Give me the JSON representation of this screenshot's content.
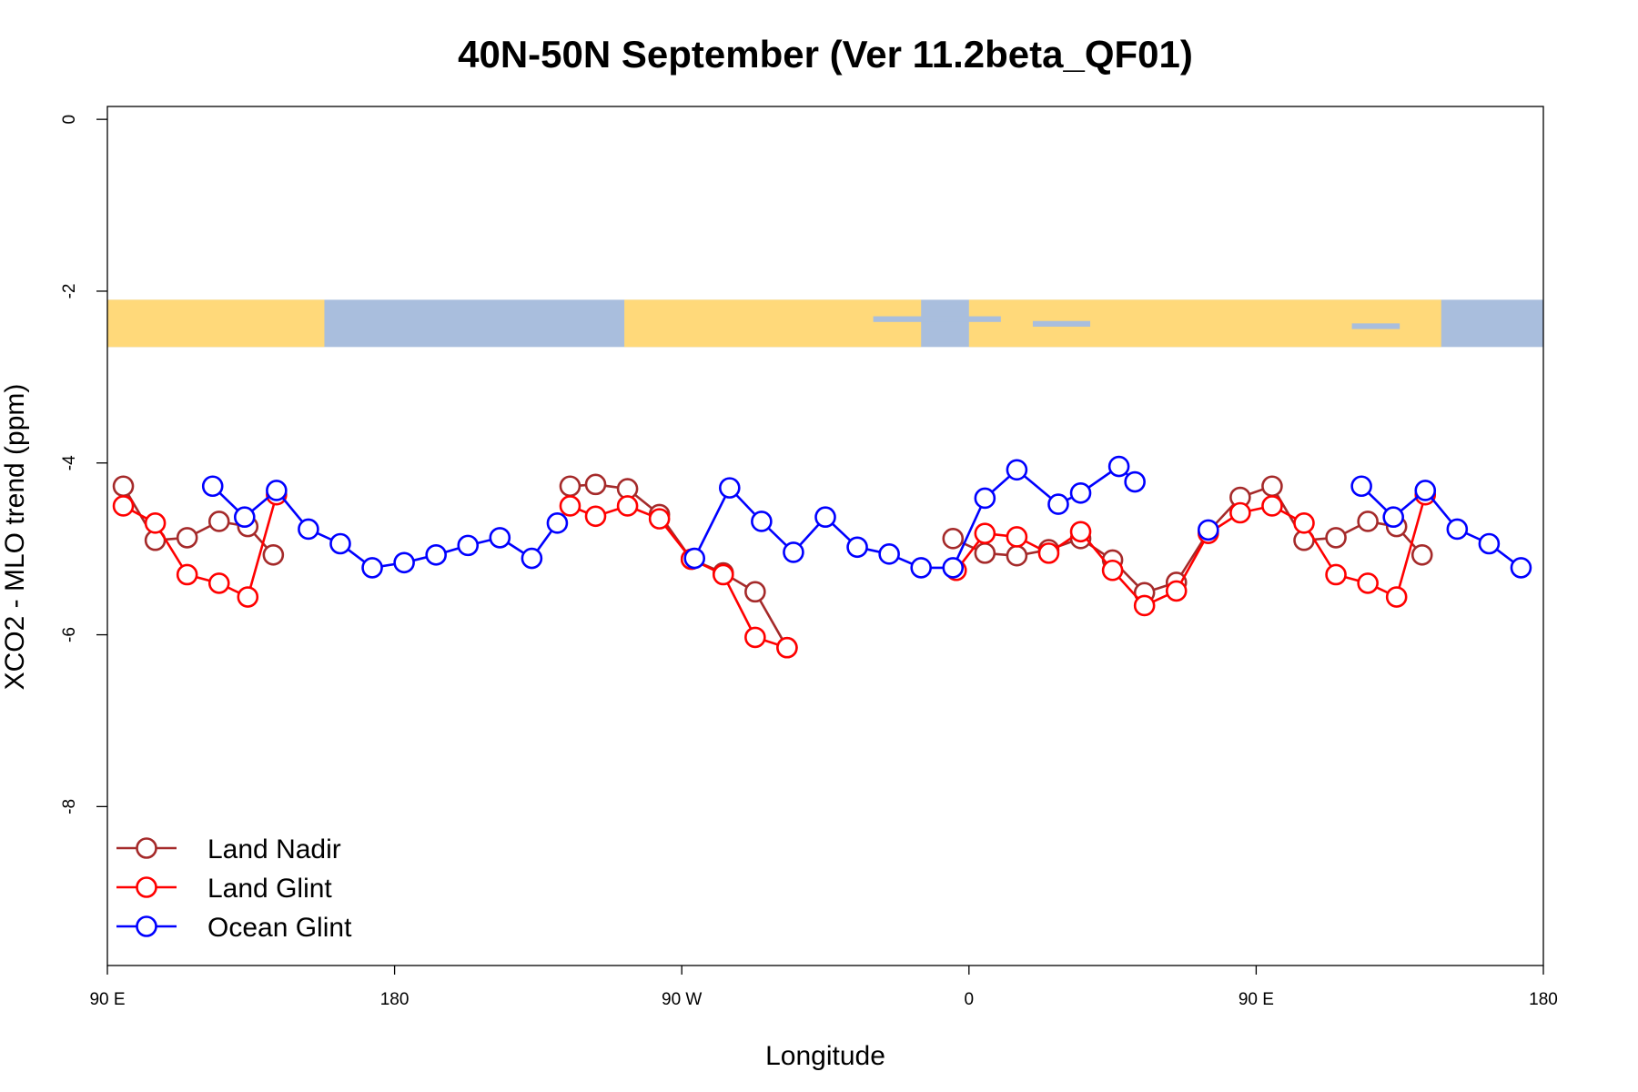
{
  "chart_data": {
    "type": "line",
    "title": "40N-50N September (Ver 11.2beta_QF01)",
    "xlabel": "Longitude",
    "ylabel": "XCO2 - MLO trend (ppm)",
    "x_tick_labels": [
      "90 E",
      "180",
      "90 W",
      "0",
      "90 E",
      "180"
    ],
    "y_tick_labels": [
      "0",
      "-2",
      "-4",
      "-6",
      "-8"
    ],
    "ylim": [
      -9.85,
      0.15
    ],
    "grid": false,
    "legend_position": "bottom-left",
    "map_strip": {
      "y_range": [
        -2.65,
        -2.1
      ],
      "land_color": "#FFD97A",
      "ocean_color": "#A9BEDD"
    },
    "series": [
      {
        "name": "Land Nadir",
        "color": "#A52A2A",
        "points": [
          [
            -265,
            -4.27
          ],
          [
            -255,
            -4.9
          ],
          [
            -245,
            -4.87
          ],
          [
            -235,
            -4.68
          ],
          [
            -226,
            -4.74
          ],
          [
            -218,
            -5.07
          ],
          [
            -125,
            -4.27
          ],
          [
            -117,
            -4.25
          ],
          [
            -107,
            -4.3
          ],
          [
            -97,
            -4.6
          ],
          [
            -87,
            -5.12
          ],
          [
            -77,
            -5.28
          ],
          [
            -67,
            -5.5
          ],
          [
            -57,
            -6.15
          ],
          [
            -5,
            -4.88
          ],
          [
            5,
            -5.05
          ],
          [
            15,
            -5.08
          ],
          [
            25,
            -5.01
          ],
          [
            35,
            -4.88
          ],
          [
            45,
            -5.13
          ],
          [
            55,
            -5.51
          ],
          [
            65,
            -5.39
          ],
          [
            75,
            -4.8
          ],
          [
            85,
            -4.4
          ],
          [
            95,
            -4.27
          ],
          [
            105,
            -4.9
          ],
          [
            115,
            -4.87
          ],
          [
            125,
            -4.68
          ],
          [
            134,
            -4.74
          ],
          [
            142,
            -5.07
          ]
        ]
      },
      {
        "name": "Land Glint",
        "color": "#FF0000",
        "points": [
          [
            -265,
            -4.5
          ],
          [
            -255,
            -4.7
          ],
          [
            -245,
            -5.3
          ],
          [
            -235,
            -5.4
          ],
          [
            -226,
            -5.56
          ],
          [
            -217,
            -4.37
          ],
          [
            -125,
            -4.5
          ],
          [
            -117,
            -4.62
          ],
          [
            -107,
            -4.5
          ],
          [
            -97,
            -4.65
          ],
          [
            -87,
            -5.12
          ],
          [
            -77,
            -5.3
          ],
          [
            -67,
            -6.03
          ],
          [
            -57,
            -6.15
          ],
          [
            -4,
            -5.25
          ],
          [
            5,
            -4.82
          ],
          [
            15,
            -4.86
          ],
          [
            25,
            -5.05
          ],
          [
            35,
            -4.8
          ],
          [
            45,
            -5.25
          ],
          [
            55,
            -5.66
          ],
          [
            65,
            -5.49
          ],
          [
            75,
            -4.82
          ],
          [
            85,
            -4.58
          ],
          [
            95,
            -4.5
          ],
          [
            105,
            -4.7
          ],
          [
            115,
            -5.3
          ],
          [
            125,
            -5.4
          ],
          [
            134,
            -5.56
          ],
          [
            143,
            -4.37
          ]
        ]
      },
      {
        "name": "Ocean Glint",
        "color": "#0000FF",
        "points": [
          [
            -237,
            -4.27
          ],
          [
            -227,
            -4.63
          ],
          [
            -217,
            -4.32
          ],
          [
            -207,
            -4.77
          ],
          [
            -197,
            -4.94
          ],
          [
            -187,
            -5.22
          ],
          [
            -177,
            -5.16
          ],
          [
            -167,
            -5.07
          ],
          [
            -157,
            -4.96
          ],
          [
            -147,
            -4.87
          ],
          [
            -137,
            -5.11
          ],
          [
            -129,
            -4.7
          ],
          [
            -86,
            -5.11
          ],
          [
            -75,
            -4.29
          ],
          [
            -65,
            -4.68
          ],
          [
            -55,
            -5.04
          ],
          [
            -45,
            -4.63
          ],
          [
            -35,
            -4.98
          ],
          [
            -25,
            -5.06
          ],
          [
            -15,
            -5.22
          ],
          [
            -5,
            -5.22
          ],
          [
            5,
            -4.41
          ],
          [
            15,
            -4.08
          ],
          [
            28,
            -4.48
          ],
          [
            35,
            -4.35
          ],
          [
            47,
            -4.04
          ],
          [
            52,
            -4.22
          ],
          [
            75,
            -4.78
          ],
          [
            123,
            -4.27
          ],
          [
            133,
            -4.63
          ],
          [
            143,
            -4.32
          ],
          [
            153,
            -4.77
          ],
          [
            163,
            -4.94
          ],
          [
            173,
            -5.22
          ]
        ]
      }
    ]
  }
}
